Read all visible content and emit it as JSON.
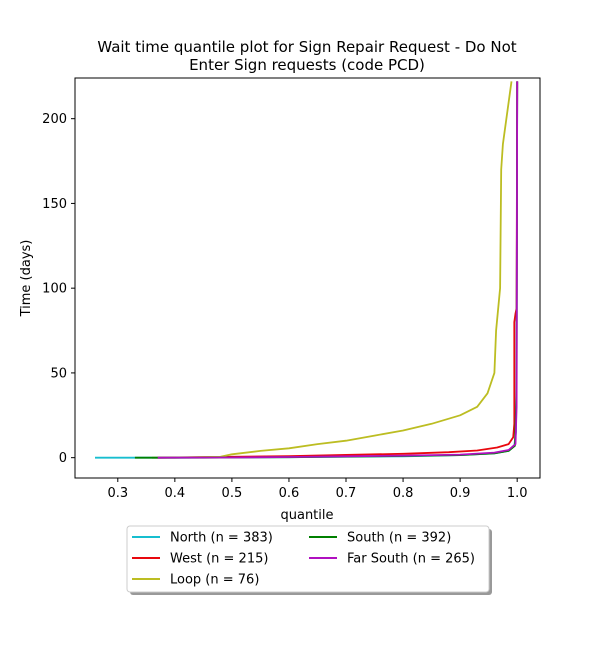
{
  "chart_data": {
    "type": "line",
    "title_lines": [
      "Wait time quantile plot for Sign Repair Request - Do Not",
      "Enter Sign  requests (code PCD)"
    ],
    "xlabel": "quantile",
    "ylabel": "Time (days)",
    "xlim": [
      0.225,
      1.04
    ],
    "ylim": [
      -12,
      224
    ],
    "xticks": [
      0.3,
      0.4,
      0.5,
      0.6,
      0.7,
      0.8,
      0.9,
      1.0
    ],
    "xtick_labels": [
      "0.3",
      "0.4",
      "0.5",
      "0.6",
      "0.7",
      "0.8",
      "0.9",
      "1.0"
    ],
    "yticks": [
      0,
      50,
      100,
      150,
      200
    ],
    "ytick_labels": [
      "0",
      "50",
      "100",
      "150",
      "200"
    ],
    "grid": false,
    "legend_position": "below",
    "series": [
      {
        "name": "North (n = 383)",
        "color": "#17becf",
        "points": [
          [
            0.26,
            0
          ],
          [
            0.4,
            0
          ],
          [
            0.6,
            0.3
          ],
          [
            0.8,
            0.8
          ],
          [
            0.9,
            1.5
          ],
          [
            0.96,
            2.5
          ],
          [
            0.985,
            4
          ],
          [
            0.995,
            7
          ],
          [
            0.998,
            15
          ],
          [
            0.999,
            60
          ],
          [
            1.0,
            222
          ]
        ]
      },
      {
        "name": "West (n = 215)",
        "color": "#e8080e",
        "points": [
          [
            0.37,
            0
          ],
          [
            0.5,
            0.5
          ],
          [
            0.6,
            0.9
          ],
          [
            0.7,
            1.6
          ],
          [
            0.8,
            2.3
          ],
          [
            0.88,
            3.2
          ],
          [
            0.93,
            4.2
          ],
          [
            0.965,
            6
          ],
          [
            0.985,
            8
          ],
          [
            0.993,
            12
          ],
          [
            0.995,
            20
          ],
          [
            0.995,
            80
          ],
          [
            0.997,
            85
          ],
          [
            0.999,
            88
          ],
          [
            1.0,
            222
          ]
        ]
      },
      {
        "name": "Loop (n = 76)",
        "color": "#bcbd22",
        "points": [
          [
            0.36,
            0
          ],
          [
            0.4,
            0
          ],
          [
            0.48,
            0.5
          ],
          [
            0.5,
            2
          ],
          [
            0.55,
            4
          ],
          [
            0.6,
            5.5
          ],
          [
            0.65,
            8
          ],
          [
            0.7,
            10
          ],
          [
            0.75,
            13
          ],
          [
            0.8,
            16
          ],
          [
            0.85,
            20
          ],
          [
            0.9,
            25
          ],
          [
            0.93,
            30
          ],
          [
            0.948,
            38
          ],
          [
            0.96,
            50
          ],
          [
            0.963,
            75
          ],
          [
            0.97,
            100
          ],
          [
            0.972,
            170
          ],
          [
            0.975,
            185
          ],
          [
            0.99,
            222
          ]
        ]
      },
      {
        "name": "South (n = 392)",
        "color": "#008000",
        "points": [
          [
            0.33,
            0
          ],
          [
            0.45,
            0
          ],
          [
            0.6,
            0.3
          ],
          [
            0.8,
            1
          ],
          [
            0.9,
            1.5
          ],
          [
            0.96,
            2.5
          ],
          [
            0.985,
            4
          ],
          [
            0.996,
            7
          ],
          [
            0.999,
            40
          ],
          [
            1.0,
            222
          ]
        ]
      },
      {
        "name": "Far South (n = 265)",
        "color": "#b010c0",
        "points": [
          [
            0.37,
            0
          ],
          [
            0.5,
            0.1
          ],
          [
            0.6,
            0.4
          ],
          [
            0.7,
            0.8
          ],
          [
            0.8,
            1.2
          ],
          [
            0.9,
            1.8
          ],
          [
            0.96,
            3
          ],
          [
            0.985,
            4.5
          ],
          [
            0.997,
            8
          ],
          [
            0.999,
            30
          ],
          [
            1.0,
            222
          ]
        ]
      }
    ]
  }
}
